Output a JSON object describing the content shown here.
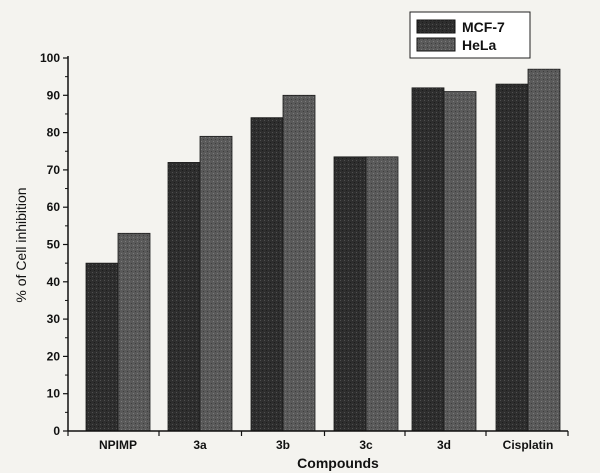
{
  "chart_data": {
    "type": "bar",
    "categories": [
      "NPIMP",
      "3a",
      "3b",
      "3c",
      "3d",
      "Cisplatin"
    ],
    "series": [
      {
        "name": "MCF-7",
        "values": [
          45,
          72,
          84,
          73.5,
          92,
          93
        ],
        "color": "#2e2e2e"
      },
      {
        "name": "HeLa",
        "values": [
          53,
          79,
          90,
          73.5,
          91,
          97
        ],
        "color": "#5a5a5a"
      }
    ],
    "xlabel": "Compounds",
    "ylabel": "% of Cell inhibition",
    "ylim": [
      0,
      100
    ],
    "yticks": [
      0,
      10,
      20,
      30,
      40,
      50,
      60,
      70,
      80,
      90,
      100
    ],
    "grid": false,
    "legend_position": "top-right"
  }
}
